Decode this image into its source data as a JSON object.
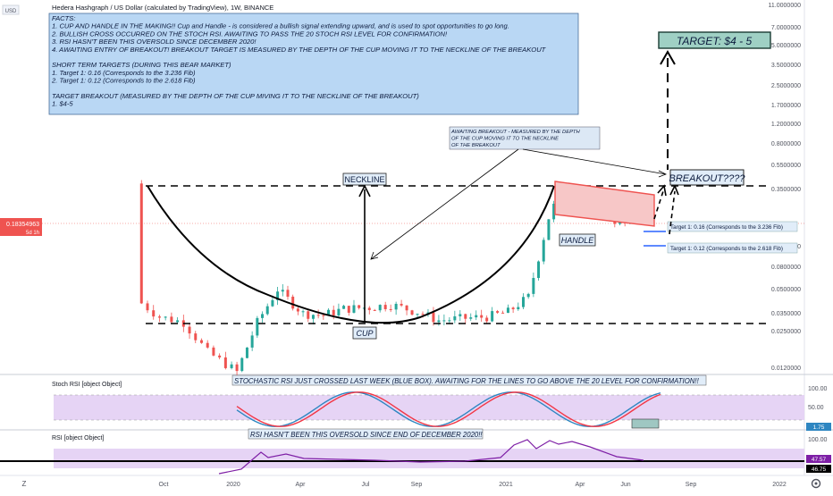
{
  "header": {
    "title": "Hedera Hashgraph / US Dollar (calculated by TradingView), 1W, BINANCE",
    "currency_badge": "USD"
  },
  "facts": {
    "lines": [
      "FACTS:",
      "1. CUP AND HANDLE IN THE MAKING!! Cup and Handle - is considered a bullish signal extending upward, and is used to spot opportunities to go long.",
      "2. BULLISH CROSS OCCURRED ON THE STOCH RSI. AWAITING TO PASS THE 20 STOCH RSI LEVEL FOR CONFIRMATION!",
      "3. RSI HASN'T BEEN THIS OVERSOLD SINCE DECEMBER 2020!",
      "4. AWAITING ENTRY OF BREAKOUT! BREAKOUT TARGET IS MEASURED BY THE DEPTH OF THE CUP MOVING IT TO THE NECKLINE OF THE BREAKOUT",
      "",
      "SHORT TERM TARGETS (DURING THIS BEAR MARKET)",
      "1. Target 1: 0.16 (Corresponds to the 3.236 Fib)",
      "2. Target 1: 0.12 (Corresponds to the 2.618 Fib)",
      "",
      "TARGET BREAKOUT (MEASURED BY THE DEPTH OF THE CUP MIVING IT TO THE NECKLINE OF THE BREAKOUT)",
      "1. $4-5"
    ]
  },
  "annotations": {
    "target_box": "TARGET: $4 - 5",
    "breakout_label": "BREAKOUT????",
    "neckline_label": "NECKLINE",
    "cup_label": "CUP",
    "handle_label": "HANDLE",
    "awaiting_lines": [
      "AWAITING BREAKOUT - MEASURED BY THE DEPTH",
      "OF THE CUP MOVING IT TO THE NECKLINE",
      "OF THE BREAKOUT"
    ],
    "target1_label": "Target 1: 0.16 (Corresponds to the 3.236 Fib)",
    "target2_label": "Target 1: 0.12 (Corresponds to the 2.618 Fib)",
    "stoch_note": "STOCHASTIC RSI JUST CROSSED LAST WEEK (BLUE BOX). AWAITING FOR THE LINES TO GO ABOVE THE 20 LEVEL FOR CONFIRMATION!!",
    "rsi_note": "RSI HASN'T BEEN THIS OVERSOLD SINCE END OF DECEMBER 2020!!"
  },
  "price_scale": {
    "ticks": [
      "11.0000000",
      "7.0000000",
      "5.0000000",
      "3.5000000",
      "2.5000000",
      "1.7000000",
      "1.2000000",
      "0.8000000",
      "0.5500000",
      "0.3500000",
      "0.1200000",
      "0.0800000",
      "0.0500000",
      "0.0350000",
      "0.0250000",
      "0.0120000"
    ],
    "current_price": "0.18354963",
    "countdown": "5d 1h"
  },
  "stoch_panel": {
    "label": "Stoch RSI [object Object]",
    "ticks": [
      "100.00",
      "50.00"
    ],
    "last_value": "1.75"
  },
  "rsi_panel": {
    "label": "RSI [object Object]",
    "ticks": [
      "100.00"
    ],
    "values": [
      "47.57",
      "46.75"
    ]
  },
  "time_axis": {
    "labels": [
      "Oct",
      "2020",
      "Apr",
      "Jul",
      "Sep",
      "2021",
      "Apr",
      "Jun",
      "Sep",
      "2022"
    ]
  },
  "bottom_left_icon": "Z",
  "settings_icon": "gear-icon",
  "colors": {
    "up": "#26a69a",
    "down": "#ef5350",
    "facts_bg": "#b9d7f4",
    "target_bg": "#9fd0c4",
    "stoch_k": "#2e86c1",
    "stoch_d": "#f23645",
    "rsi_line": "#7e1fa6",
    "band_fill": "#e6d4f5"
  },
  "chart_data": {
    "type": "candlestick",
    "title": "Hedera Hashgraph / US Dollar (calculated by TradingView), 1W, BINANCE",
    "yscale": "log",
    "ylim": [
      0.009,
      11.5
    ],
    "x": [
      "2019-09-16",
      "2019-10-07",
      "2019-11-04",
      "2019-12-02",
      "2020-01-06",
      "2020-02-03",
      "2020-03-02",
      "2020-04-06",
      "2020-05-04",
      "2020-06-01",
      "2020-07-06",
      "2020-08-03",
      "2020-09-07",
      "2020-10-05",
      "2020-11-02",
      "2020-12-07",
      "2021-01-04",
      "2021-02-01",
      "2021-03-01",
      "2021-03-15",
      "2021-04-05",
      "2021-05-03",
      "2021-05-17",
      "2021-06-07",
      "2021-06-21"
    ],
    "close": [
      0.04,
      0.031,
      0.028,
      0.016,
      0.011,
      0.028,
      0.052,
      0.033,
      0.032,
      0.036,
      0.037,
      0.039,
      0.034,
      0.029,
      0.03,
      0.031,
      0.034,
      0.045,
      0.2,
      0.31,
      0.31,
      0.3,
      0.21,
      0.18,
      0.18
    ],
    "levels": {
      "neckline": 0.38,
      "cup_bottom": 0.027
    },
    "targets": [
      0.16,
      0.12,
      4.5
    ],
    "stoch_rsi_last": 1.75,
    "rsi_last": [
      47.57,
      46.75
    ]
  }
}
